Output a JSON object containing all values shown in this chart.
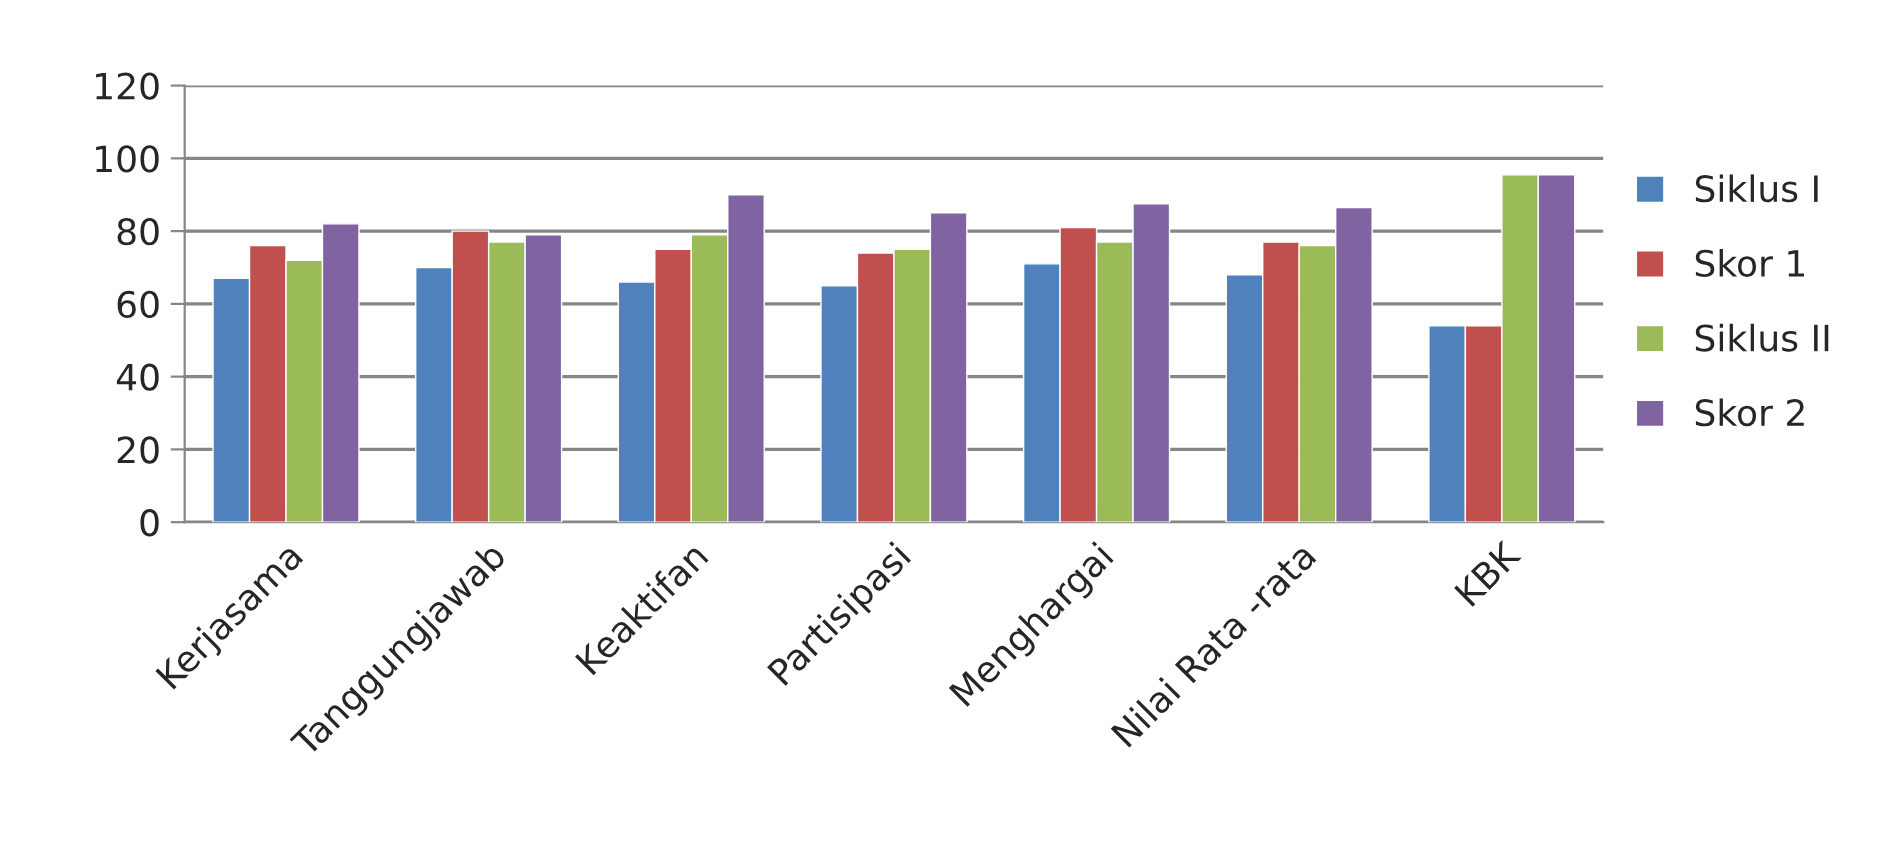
{
  "chart_data": {
    "type": "bar",
    "categories": [
      "Kerjasama",
      "Tanggungjawab",
      "Keaktifan",
      "Partisipasi",
      "Menghargai",
      "Nilai Rata -rata",
      "KBK"
    ],
    "series": [
      {
        "name": "Siklus I",
        "color": "#4f81bd",
        "values": [
          67,
          70,
          66,
          65,
          71,
          68,
          54
        ]
      },
      {
        "name": "Skor 1",
        "color": "#c0504d",
        "values": [
          76,
          80,
          75,
          74,
          81,
          77,
          54
        ]
      },
      {
        "name": "Siklus II",
        "color": "#9bbb59",
        "values": [
          72,
          77,
          79,
          75,
          77,
          76,
          95.5
        ]
      },
      {
        "name": "Skor 2",
        "color": "#8064a2",
        "values": [
          82,
          79,
          90,
          85,
          87.5,
          86.5,
          95.5
        ]
      }
    ],
    "ylim": [
      0,
      120
    ],
    "yticks": [
      0,
      20,
      40,
      60,
      80,
      100,
      120
    ],
    "grid": "y",
    "legend": "right"
  }
}
